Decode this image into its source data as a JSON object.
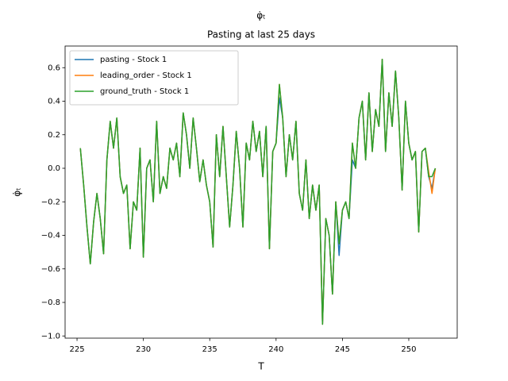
{
  "chart_data": {
    "type": "line",
    "title": "φ̇ₜ",
    "subtitle": "Pasting at last 25 days",
    "x_label": "T",
    "y_label": "φ̇ₜ",
    "legend": "upper left",
    "xlim": [
      224.1,
      253.65
    ],
    "ylim": [
      -1.013,
      0.729
    ],
    "xticks": [
      225,
      230,
      235,
      240,
      245,
      250
    ],
    "yticks": [
      {
        "value": -1.0,
        "label": "−1.0"
      },
      {
        "value": -0.8,
        "label": "−0.8"
      },
      {
        "value": -0.6,
        "label": "−0.6"
      },
      {
        "value": -0.4,
        "label": "−0.4"
      },
      {
        "value": -0.2,
        "label": "−0.2"
      },
      {
        "value": 0,
        "label": "0.0"
      },
      0.2,
      0.4,
      0.6
    ],
    "x": [
      225.25,
      225.5,
      225.75,
      226.0,
      226.25,
      226.5,
      226.75,
      227.0,
      227.25,
      227.5,
      227.75,
      228.0,
      228.25,
      228.5,
      228.75,
      229.0,
      229.25,
      229.5,
      229.75,
      230.0,
      230.25,
      230.5,
      230.75,
      231.0,
      231.25,
      231.5,
      231.75,
      232.0,
      232.25,
      232.5,
      232.75,
      233.0,
      233.25,
      233.5,
      233.75,
      234.0,
      234.25,
      234.5,
      234.75,
      235.0,
      235.25,
      235.5,
      235.75,
      236.0,
      236.25,
      236.5,
      236.75,
      237.0,
      237.25,
      237.5,
      237.75,
      238.0,
      238.25,
      238.5,
      238.75,
      239.0,
      239.25,
      239.5,
      239.75,
      240.0,
      240.25,
      240.5,
      240.75,
      241.0,
      241.25,
      241.5,
      241.75,
      242.0,
      242.25,
      242.5,
      242.75,
      243.0,
      243.25,
      243.5,
      243.75,
      244.0,
      244.25,
      244.5,
      244.75,
      245.0,
      245.25,
      245.5,
      245.75,
      246.0,
      246.25,
      246.5,
      246.75,
      247.0,
      247.25,
      247.5,
      247.75,
      248.0,
      248.25,
      248.5,
      248.75,
      249.0,
      249.25,
      249.5,
      249.75,
      250.0,
      250.25,
      250.5,
      250.75,
      251.0,
      251.25,
      251.5,
      251.75,
      252.0
    ],
    "series": [
      {
        "name": "pasting - Stock 1",
        "color": "#1f77b4",
        "values": [
          0.12,
          -0.1,
          -0.35,
          -0.57,
          -0.32,
          -0.15,
          -0.3,
          -0.51,
          0.05,
          0.28,
          0.12,
          0.3,
          -0.05,
          -0.15,
          -0.1,
          -0.48,
          -0.2,
          -0.25,
          0.12,
          -0.53,
          0.0,
          0.05,
          -0.2,
          0.28,
          -0.15,
          -0.05,
          -0.12,
          0.12,
          0.05,
          0.15,
          -0.05,
          0.33,
          0.2,
          0.0,
          0.3,
          0.12,
          -0.08,
          0.05,
          -0.1,
          -0.2,
          -0.47,
          0.2,
          -0.05,
          0.25,
          -0.05,
          -0.35,
          -0.1,
          0.22,
          0.0,
          -0.35,
          0.15,
          0.05,
          0.28,
          0.1,
          0.22,
          -0.05,
          0.25,
          -0.48,
          0.1,
          0.15,
          0.42,
          0.3,
          -0.05,
          0.2,
          0.05,
          0.28,
          -0.15,
          -0.25,
          0.05,
          -0.3,
          -0.1,
          -0.25,
          -0.1,
          -0.93,
          -0.3,
          -0.4,
          -0.75,
          -0.2,
          -0.52,
          -0.25,
          -0.2,
          -0.3,
          0.05,
          0.0,
          0.3,
          0.4,
          0.05,
          0.45,
          0.1,
          0.35,
          0.25,
          0.65,
          0.1,
          0.45,
          0.25,
          0.58,
          0.3,
          -0.13,
          0.4,
          0.15,
          0.05,
          0.1,
          -0.38,
          0.1,
          0.12,
          -0.05,
          -0.12,
          0.0
        ]
      },
      {
        "name": "leading_order - Stock 1",
        "color": "#ff7f0e",
        "values": [
          0.12,
          -0.1,
          -0.35,
          -0.57,
          -0.32,
          -0.15,
          -0.3,
          -0.51,
          0.05,
          0.28,
          0.12,
          0.3,
          -0.05,
          -0.15,
          -0.1,
          -0.48,
          -0.2,
          -0.25,
          0.12,
          -0.53,
          0.0,
          0.05,
          -0.2,
          0.28,
          -0.15,
          -0.05,
          -0.12,
          0.12,
          0.05,
          0.15,
          -0.05,
          0.33,
          0.2,
          0.0,
          0.3,
          0.12,
          -0.08,
          0.05,
          -0.1,
          -0.2,
          -0.47,
          0.2,
          -0.05,
          0.25,
          -0.05,
          -0.35,
          -0.1,
          0.22,
          0.0,
          -0.35,
          0.15,
          0.05,
          0.28,
          0.1,
          0.22,
          -0.05,
          0.25,
          -0.48,
          0.1,
          0.15,
          0.5,
          0.3,
          -0.05,
          0.2,
          0.05,
          0.28,
          -0.15,
          -0.25,
          0.05,
          -0.3,
          -0.1,
          -0.25,
          -0.1,
          -0.93,
          -0.3,
          -0.4,
          -0.75,
          -0.2,
          -0.45,
          -0.25,
          -0.2,
          -0.3,
          0.15,
          0.0,
          0.3,
          0.4,
          0.05,
          0.45,
          0.1,
          0.35,
          0.25,
          0.65,
          0.1,
          0.45,
          0.25,
          0.58,
          0.3,
          -0.13,
          0.4,
          0.15,
          0.05,
          0.1,
          -0.38,
          0.1,
          0.12,
          -0.02,
          -0.15,
          0.0
        ]
      },
      {
        "name": "ground_truth - Stock 1",
        "color": "#2ca02c",
        "values": [
          0.12,
          -0.1,
          -0.35,
          -0.57,
          -0.32,
          -0.15,
          -0.3,
          -0.51,
          0.05,
          0.28,
          0.12,
          0.3,
          -0.05,
          -0.15,
          -0.1,
          -0.48,
          -0.2,
          -0.25,
          0.12,
          -0.53,
          0.0,
          0.05,
          -0.2,
          0.28,
          -0.15,
          -0.05,
          -0.12,
          0.12,
          0.05,
          0.15,
          -0.05,
          0.33,
          0.2,
          0.0,
          0.3,
          0.12,
          -0.08,
          0.05,
          -0.1,
          -0.2,
          -0.47,
          0.2,
          -0.05,
          0.25,
          -0.05,
          -0.35,
          -0.1,
          0.22,
          0.0,
          -0.35,
          0.15,
          0.05,
          0.28,
          0.1,
          0.22,
          -0.05,
          0.25,
          -0.48,
          0.1,
          0.15,
          0.5,
          0.3,
          -0.05,
          0.2,
          0.05,
          0.28,
          -0.15,
          -0.25,
          0.05,
          -0.3,
          -0.1,
          -0.25,
          -0.1,
          -0.93,
          -0.3,
          -0.4,
          -0.75,
          -0.2,
          -0.45,
          -0.25,
          -0.2,
          -0.3,
          0.15,
          0.0,
          0.3,
          0.4,
          0.05,
          0.45,
          0.1,
          0.35,
          0.25,
          0.65,
          0.1,
          0.45,
          0.25,
          0.58,
          0.3,
          -0.13,
          0.4,
          0.15,
          0.05,
          0.1,
          -0.38,
          0.1,
          0.12,
          -0.05,
          -0.05,
          0.0
        ]
      }
    ]
  }
}
